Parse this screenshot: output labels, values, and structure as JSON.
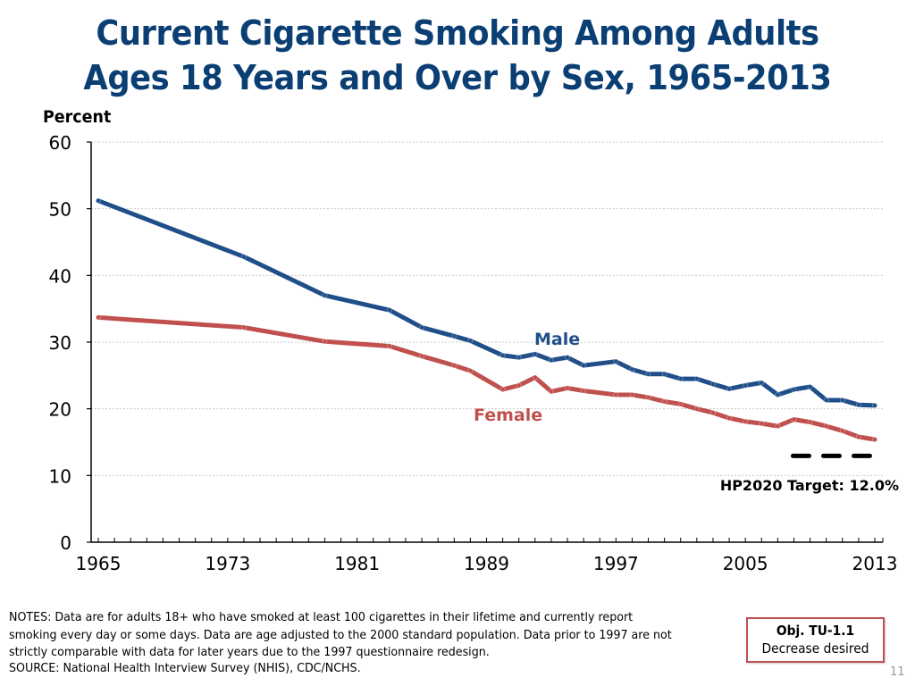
{
  "slide": {
    "title_lines": [
      "Current Cigarette Smoking Among Adults",
      "Ages 18 Years and Over by Sex, 1965-2013"
    ],
    "notes_lines": [
      "NOTES: Data are for adults 18+ who have smoked at least 100 cigarettes in their lifetime and currently report",
      "smoking every day or some days. Data are age adjusted to the 2000 standard population. Data prior to 1997 are not",
      "strictly comparable with data for later years due to the 1997 questionnaire redesign."
    ],
    "source": "SOURCE: National Health Interview Survey (NHIS), CDC/NCHS.",
    "objective": {
      "title": "Obj. TU-1.1",
      "subtitle": "Decrease desired",
      "border_color": "#c0504d"
    },
    "page_number": "11"
  },
  "chart_data": {
    "type": "line",
    "title": "Current Cigarette Smoking Among Adults Ages 18 Years and Over by Sex, 1965-2013",
    "xlabel": "",
    "ylabel": "Percent",
    "xlim": [
      1965,
      2013
    ],
    "ylim": [
      0,
      60
    ],
    "x_ticks": [
      "1965",
      "1973",
      "1981",
      "1989",
      "1997",
      "2005",
      "2013"
    ],
    "y_ticks": [
      "0",
      "10",
      "20",
      "30",
      "40",
      "50",
      "60"
    ],
    "grid": "horizontal-dotted",
    "series": [
      {
        "name": "Male",
        "color": "#1f4e89",
        "x": [
          1965,
          1974,
          1979,
          1983,
          1985,
          1987,
          1988,
          1990,
          1991,
          1992,
          1993,
          1994,
          1995,
          1997,
          1998,
          1999,
          2000,
          2001,
          2002,
          2003,
          2004,
          2005,
          2006,
          2007,
          2008,
          2009,
          2010,
          2011,
          2012,
          2013
        ],
        "values": [
          51.2,
          42.8,
          37.0,
          34.8,
          32.2,
          30.9,
          30.2,
          28.0,
          27.7,
          28.2,
          27.3,
          27.7,
          26.5,
          27.1,
          25.9,
          25.2,
          25.2,
          24.5,
          24.5,
          23.7,
          23.0,
          23.5,
          23.9,
          22.1,
          22.9,
          23.3,
          21.3,
          21.3,
          20.6,
          20.5
        ]
      },
      {
        "name": "Female",
        "color": "#c0504d",
        "x": [
          1965,
          1974,
          1979,
          1983,
          1985,
          1987,
          1988,
          1990,
          1991,
          1992,
          1993,
          1994,
          1995,
          1997,
          1998,
          1999,
          2000,
          2001,
          2002,
          2003,
          2004,
          2005,
          2006,
          2007,
          2008,
          2009,
          2010,
          2011,
          2012,
          2013
        ],
        "values": [
          33.7,
          32.2,
          30.1,
          29.4,
          27.9,
          26.5,
          25.7,
          22.9,
          23.5,
          24.7,
          22.6,
          23.1,
          22.7,
          22.1,
          22.1,
          21.7,
          21.1,
          20.7,
          20.0,
          19.4,
          18.6,
          18.1,
          17.8,
          17.4,
          18.4,
          18.0,
          17.4,
          16.7,
          15.8,
          15.4
        ]
      }
    ],
    "target": {
      "label": "HP2020 Target: 12.0%",
      "value": 12.0,
      "x_range": [
        2008,
        2013
      ],
      "style": "dashed",
      "color": "#000000"
    },
    "annotations": [
      {
        "text": "Male",
        "series": "Male"
      },
      {
        "text": "Female",
        "series": "Female"
      }
    ]
  }
}
